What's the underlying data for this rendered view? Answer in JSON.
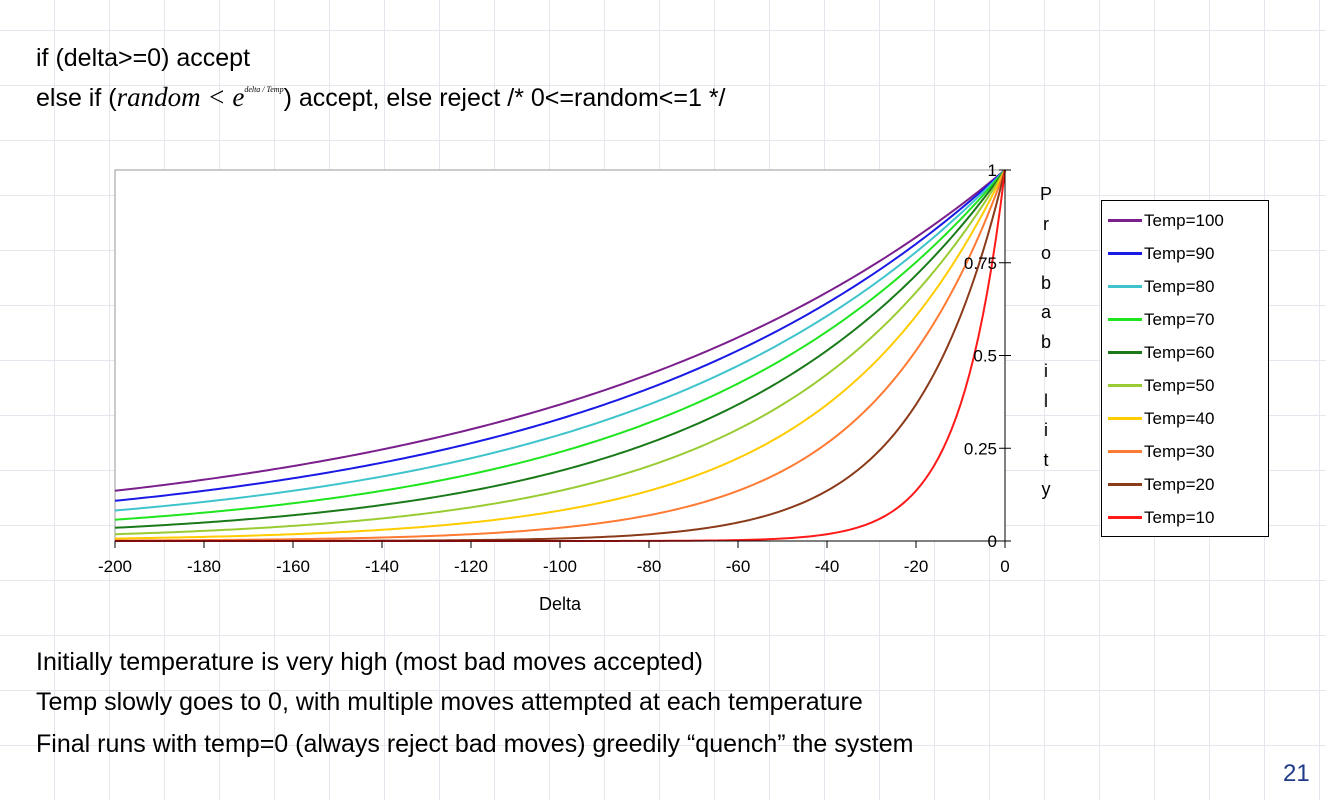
{
  "slide": {
    "code_line1": "if (delta>=0) accept",
    "code_line2_pre": "else if (",
    "code_formula": "random < e",
    "code_formula_sup": "delta / Temp",
    "code_line2_post": ") accept, else reject /* 0<=random<=1 */",
    "bullets": [
      "Initially temperature is very high (most bad moves accepted)",
      "Temp slowly goes to 0, with multiple moves attempted at each temperature",
      "Final runs with temp=0 (always reject bad moves) greedily “quench” the system"
    ],
    "page_number": "21"
  },
  "chart_data": {
    "type": "line",
    "title": "",
    "xlabel": "Delta",
    "ylabel": "Probability",
    "xlim": [
      -200,
      0
    ],
    "ylim": [
      0,
      1
    ],
    "xticks": [
      "-200",
      "-180",
      "-160",
      "-140",
      "-120",
      "-100",
      "-80",
      "-60",
      "-40",
      "-20",
      "0"
    ],
    "yticks": [
      "0",
      "0.25",
      "0.5",
      "0.75",
      "1"
    ],
    "x": [
      -200,
      -180,
      -160,
      -140,
      -120,
      -100,
      -80,
      -60,
      -40,
      -20,
      0
    ],
    "grid": false,
    "legend_position": "right",
    "series": [
      {
        "name": "Temp=100",
        "temp": 100,
        "color": "#7b1f8c",
        "values": [
          0.135,
          0.165,
          0.202,
          0.247,
          0.301,
          0.368,
          0.449,
          0.549,
          0.67,
          0.819,
          1.0
        ]
      },
      {
        "name": "Temp=90",
        "temp": 90,
        "color": "#1a1ae6",
        "values": [
          0.108,
          0.135,
          0.169,
          0.211,
          0.264,
          0.329,
          0.411,
          0.513,
          0.641,
          0.801,
          1.0
        ]
      },
      {
        "name": "Temp=80",
        "temp": 80,
        "color": "#3fc4cc",
        "values": [
          0.082,
          0.105,
          0.135,
          0.174,
          0.223,
          0.287,
          0.368,
          0.472,
          0.607,
          0.779,
          1.0
        ]
      },
      {
        "name": "Temp=70",
        "temp": 70,
        "color": "#1fe51f",
        "values": [
          0.057,
          0.076,
          0.102,
          0.135,
          0.18,
          0.24,
          0.319,
          0.424,
          0.565,
          0.751,
          1.0
        ]
      },
      {
        "name": "Temp=60",
        "temp": 60,
        "color": "#1a7a1a",
        "values": [
          0.036,
          0.05,
          0.069,
          0.097,
          0.135,
          0.189,
          0.264,
          0.368,
          0.513,
          0.717,
          1.0
        ]
      },
      {
        "name": "Temp=50",
        "temp": 50,
        "color": "#99cc33",
        "values": [
          0.018,
          0.027,
          0.041,
          0.061,
          0.091,
          0.135,
          0.202,
          0.301,
          0.449,
          0.67,
          1.0
        ]
      },
      {
        "name": "Temp=40",
        "temp": 40,
        "color": "#ffcc00",
        "values": [
          0.007,
          0.011,
          0.018,
          0.03,
          0.05,
          0.082,
          0.135,
          0.223,
          0.368,
          0.607,
          1.0
        ]
      },
      {
        "name": "Temp=30",
        "temp": 30,
        "color": "#ff7a33",
        "values": [
          0.001,
          0.002,
          0.005,
          0.009,
          0.018,
          0.036,
          0.069,
          0.135,
          0.264,
          0.513,
          1.0
        ]
      },
      {
        "name": "Temp=20",
        "temp": 20,
        "color": "#8b3a1a",
        "values": [
          0.0,
          0.0,
          0.0,
          0.001,
          0.002,
          0.007,
          0.018,
          0.05,
          0.135,
          0.368,
          1.0
        ]
      },
      {
        "name": "Temp=10",
        "temp": 10,
        "color": "#ff1a1a",
        "values": [
          0.0,
          0.0,
          0.0,
          0.0,
          0.0,
          0.0,
          0.0,
          0.002,
          0.018,
          0.135,
          1.0
        ]
      }
    ]
  }
}
